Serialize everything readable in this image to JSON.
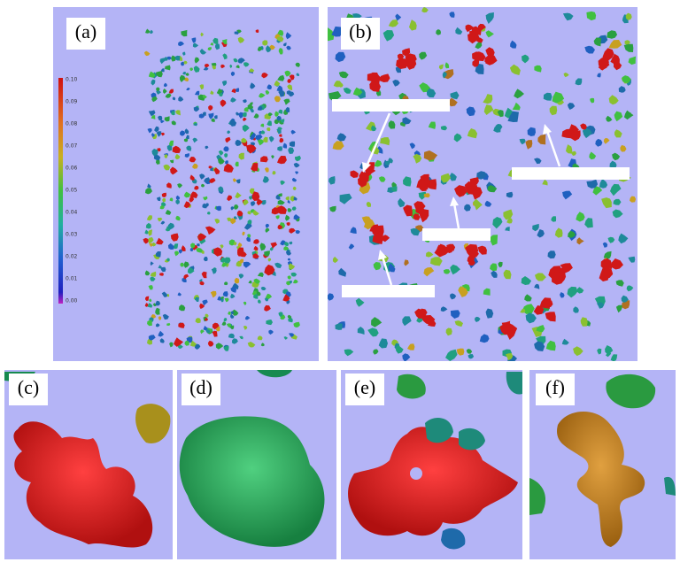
{
  "panels": {
    "a": {
      "label": "(a)"
    },
    "b": {
      "label": "(b)"
    },
    "c": {
      "label": "(c)"
    },
    "d": {
      "label": "(d)"
    },
    "e": {
      "label": "(e)"
    },
    "f": {
      "label": "(f)"
    }
  },
  "colorbar": {
    "ticks": [
      "0.10",
      "0.09",
      "0.08",
      "0.07",
      "0.06",
      "0.05",
      "0.04",
      "0.03",
      "0.02",
      "0.01",
      "0.00"
    ]
  }
}
